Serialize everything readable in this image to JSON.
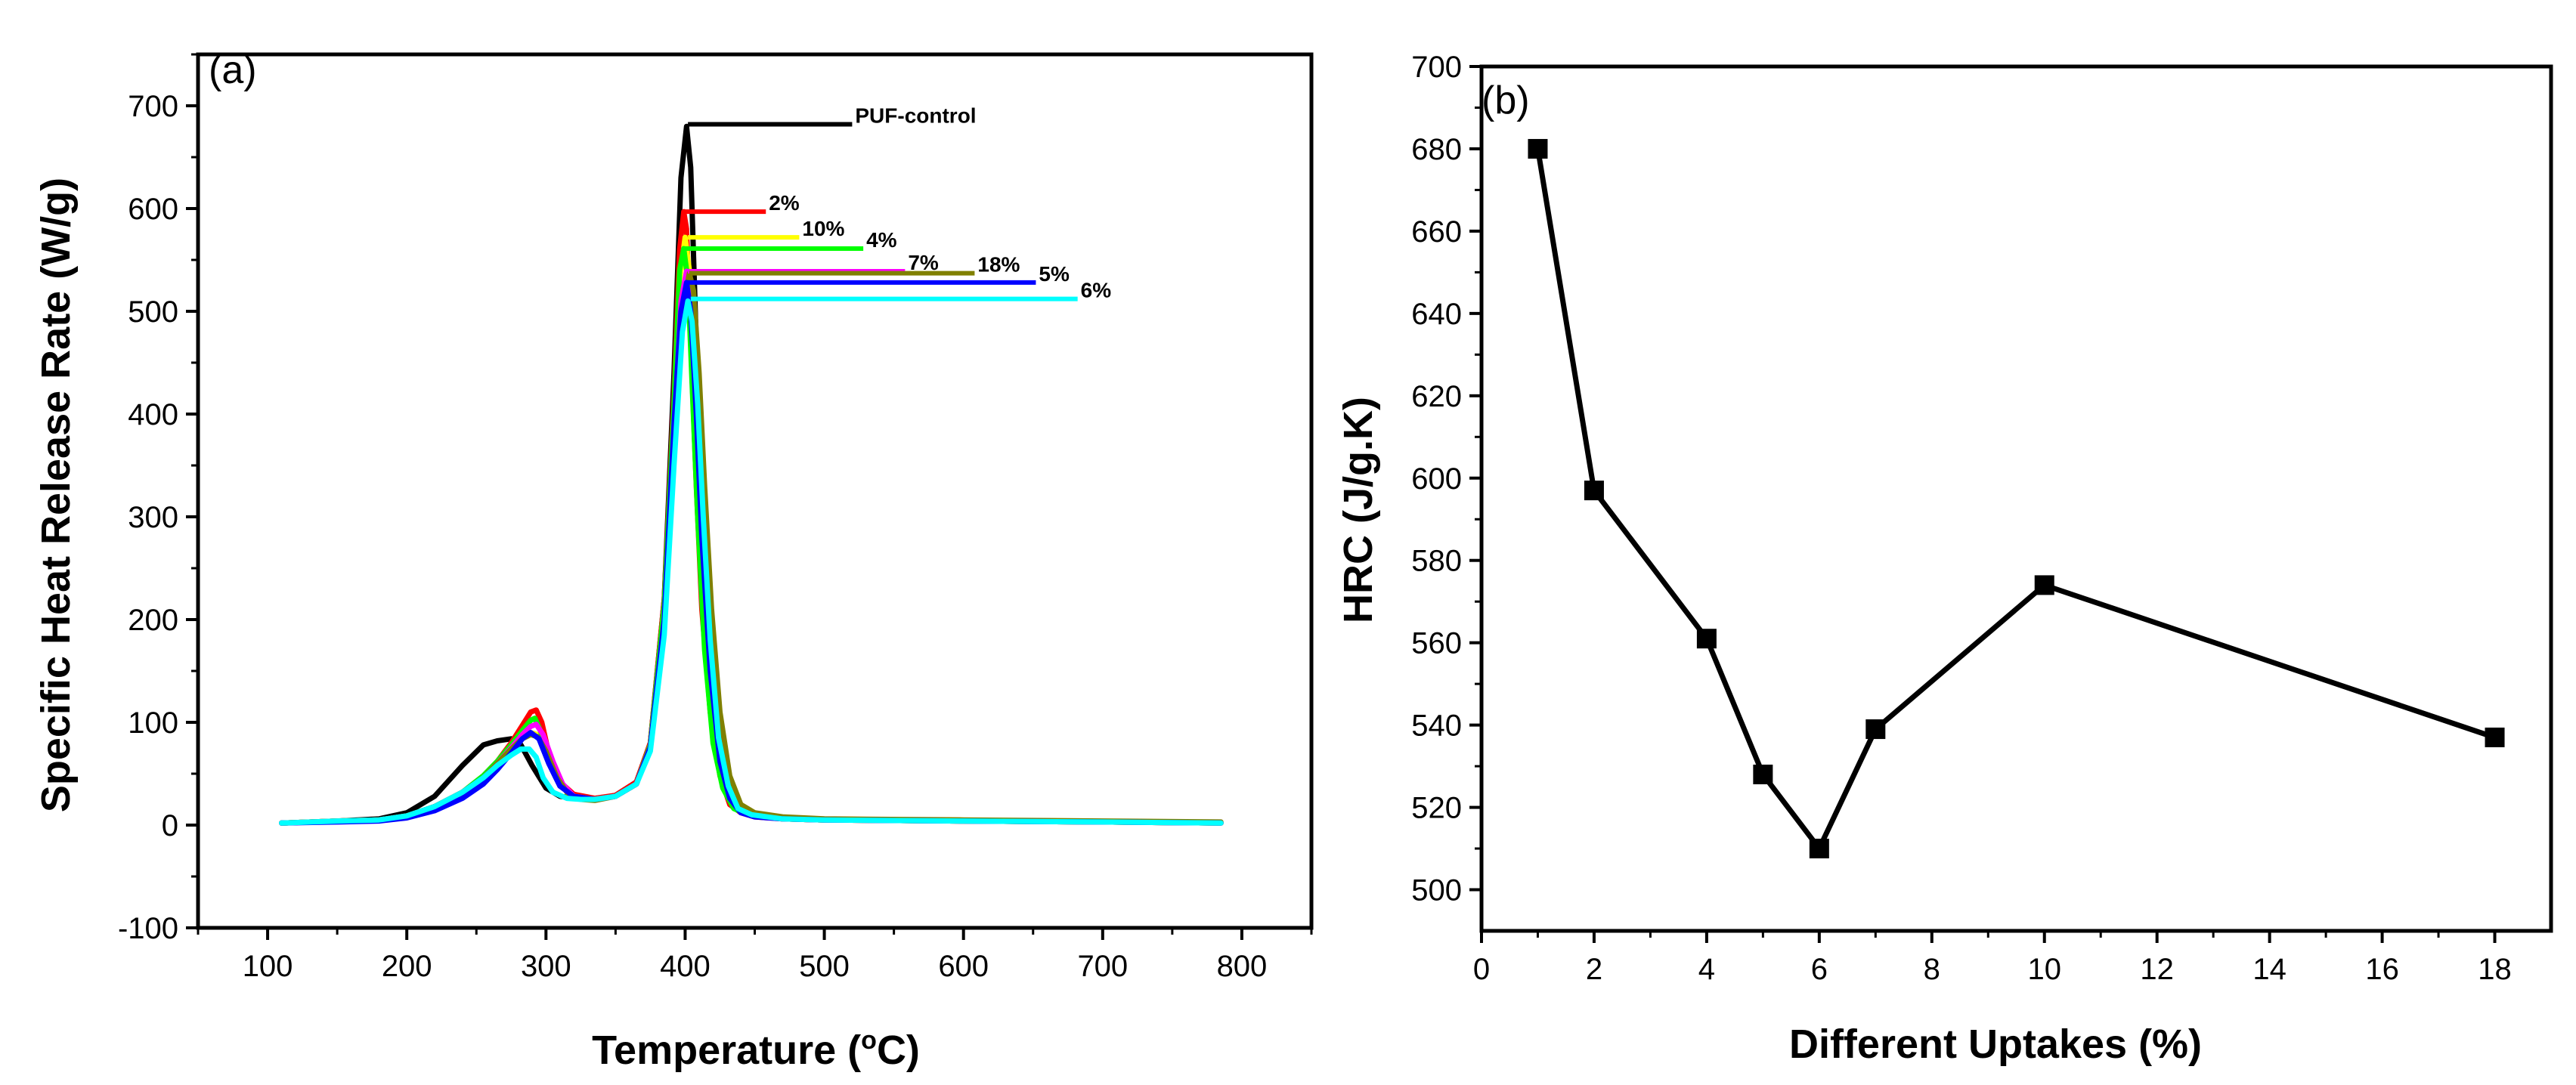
{
  "chart_data": [
    {
      "type": "line",
      "panel": "(a)",
      "xlabel": "Temperature (oC)",
      "xlabel_main": "Temperature (",
      "xlabel_sup": "o",
      "xlabel_end": "C)",
      "ylabel": "Specific Heat Release Rate (W/g)",
      "xlim": [
        50,
        850
      ],
      "ylim": [
        -100,
        750
      ],
      "xticks": [
        100,
        200,
        300,
        400,
        500,
        600,
        700,
        800
      ],
      "yticks": [
        -100,
        0,
        100,
        200,
        300,
        400,
        500,
        600,
        700
      ],
      "grid": false,
      "series": [
        {
          "name": "PUF-control",
          "color": "#000000",
          "x": [
            110,
            150,
            180,
            200,
            220,
            240,
            255,
            265,
            275,
            282,
            290,
            300,
            310,
            320,
            335,
            350,
            365,
            375,
            385,
            392,
            397,
            401,
            404,
            408,
            412,
            418,
            425,
            432,
            440,
            450,
            470,
            500,
            600,
            700,
            785
          ],
          "y": [
            2,
            4,
            6,
            12,
            28,
            58,
            78,
            82,
            84,
            78,
            58,
            36,
            28,
            26,
            25,
            29,
            42,
            80,
            220,
            440,
            630,
            680,
            640,
            470,
            300,
            160,
            70,
            30,
            14,
            9,
            6,
            5,
            4,
            3,
            2
          ],
          "label_anchor": [
            402,
            682
          ],
          "label_end": [
            520,
            682
          ]
        },
        {
          "name": "2%",
          "color": "#ff0000",
          "x": [
            110,
            150,
            180,
            200,
            220,
            240,
            255,
            265,
            275,
            283,
            289,
            293,
            297,
            302,
            310,
            320,
            335,
            350,
            365,
            375,
            385,
            392,
            396,
            399,
            401,
            404,
            408,
            412,
            418,
            425,
            432,
            440,
            450,
            470,
            500,
            600,
            700,
            785
          ],
          "y": [
            2,
            4,
            5,
            9,
            18,
            32,
            48,
            62,
            80,
            97,
            110,
            112,
            100,
            70,
            42,
            30,
            26,
            29,
            42,
            80,
            220,
            420,
            560,
            597,
            580,
            470,
            330,
            210,
            110,
            48,
            20,
            12,
            8,
            6,
            5,
            4,
            3,
            2
          ],
          "label_anchor": [
            399,
            597
          ],
          "label_end": [
            458,
            597
          ]
        },
        {
          "name": "10%",
          "color": "#ffff00",
          "x": [
            110,
            150,
            180,
            200,
            220,
            240,
            255,
            265,
            275,
            283,
            289,
            294,
            300,
            310,
            320,
            335,
            350,
            365,
            375,
            385,
            392,
            396,
            400,
            403,
            407,
            411,
            416,
            423,
            430,
            438,
            448,
            470,
            500,
            600,
            700,
            785
          ],
          "y": [
            2,
            4,
            5,
            9,
            18,
            32,
            46,
            58,
            72,
            84,
            90,
            88,
            70,
            40,
            28,
            25,
            28,
            40,
            78,
            210,
            400,
            530,
            572,
            540,
            440,
            320,
            190,
            90,
            40,
            18,
            10,
            6,
            5,
            4,
            3,
            2
          ],
          "label_anchor": [
            402,
            572
          ],
          "label_end": [
            482,
            572
          ]
        },
        {
          "name": "4%",
          "color": "#00ff00",
          "x": [
            110,
            150,
            180,
            200,
            220,
            240,
            255,
            265,
            275,
            283,
            289,
            292,
            296,
            302,
            310,
            320,
            335,
            350,
            365,
            375,
            385,
            392,
            396,
            399,
            402,
            405,
            409,
            414,
            420,
            427,
            435,
            445,
            470,
            500,
            600,
            700,
            785
          ],
          "y": [
            2,
            4,
            5,
            9,
            18,
            32,
            48,
            62,
            78,
            92,
            102,
            104,
            92,
            65,
            40,
            28,
            25,
            28,
            40,
            78,
            215,
            410,
            540,
            561,
            530,
            430,
            300,
            170,
            80,
            36,
            16,
            10,
            6,
            5,
            4,
            3,
            2
          ],
          "label_anchor": [
            400,
            561
          ],
          "label_end": [
            528,
            561
          ]
        },
        {
          "name": "7%",
          "color": "#ff00ff",
          "x": [
            110,
            150,
            180,
            200,
            220,
            240,
            255,
            265,
            275,
            283,
            289,
            293,
            298,
            305,
            312,
            320,
            335,
            350,
            365,
            375,
            385,
            392,
            397,
            401,
            404,
            408,
            412,
            417,
            423,
            430,
            438,
            448,
            470,
            500,
            600,
            700,
            785
          ],
          "y": [
            2,
            4,
            5,
            9,
            18,
            32,
            46,
            60,
            75,
            88,
            96,
            98,
            88,
            62,
            40,
            28,
            25,
            28,
            40,
            76,
            200,
            380,
            510,
            539,
            520,
            430,
            320,
            200,
            100,
            44,
            18,
            10,
            6,
            5,
            4,
            3,
            2
          ],
          "label_anchor": [
            402,
            539
          ],
          "label_end": [
            558,
            539
          ]
        },
        {
          "name": "18%",
          "color": "#808000",
          "x": [
            110,
            150,
            180,
            200,
            220,
            240,
            255,
            265,
            275,
            283,
            289,
            294,
            300,
            308,
            316,
            325,
            335,
            350,
            365,
            375,
            385,
            392,
            398,
            403,
            406,
            410,
            414,
            419,
            425,
            432,
            440,
            450,
            470,
            500,
            600,
            700,
            785
          ],
          "y": [
            2,
            4,
            5,
            9,
            18,
            32,
            46,
            60,
            74,
            84,
            88,
            86,
            72,
            46,
            30,
            25,
            24,
            28,
            40,
            74,
            190,
            360,
            500,
            537,
            520,
            440,
            330,
            210,
            110,
            48,
            20,
            12,
            8,
            6,
            5,
            4,
            3
          ],
          "label_anchor": [
            403,
            537
          ],
          "label_end": [
            608,
            537
          ]
        },
        {
          "name": "5%",
          "color": "#0000ff",
          "x": [
            110,
            150,
            180,
            200,
            220,
            240,
            255,
            265,
            275,
            283,
            289,
            295,
            302,
            310,
            320,
            335,
            350,
            365,
            375,
            385,
            392,
            397,
            401,
            404,
            408,
            412,
            418,
            425,
            432,
            440,
            450,
            470,
            500,
            600,
            700,
            785
          ],
          "y": [
            2,
            3,
            4,
            7,
            14,
            26,
            40,
            54,
            70,
            84,
            90,
            84,
            60,
            38,
            28,
            25,
            28,
            40,
            76,
            200,
            390,
            500,
            528,
            500,
            400,
            280,
            150,
            62,
            26,
            12,
            8,
            6,
            5,
            4,
            3,
            2
          ],
          "label_anchor": [
            400,
            528
          ],
          "label_end": [
            652,
            528
          ]
        },
        {
          "name": "6%",
          "color": "#00ffff",
          "x": [
            110,
            150,
            180,
            200,
            220,
            240,
            255,
            265,
            275,
            282,
            288,
            293,
            298,
            305,
            315,
            325,
            335,
            350,
            365,
            375,
            385,
            392,
            398,
            402,
            405,
            409,
            413,
            418,
            424,
            431,
            438,
            448,
            470,
            500,
            600,
            700,
            785
          ],
          "y": [
            2,
            4,
            5,
            9,
            18,
            32,
            46,
            58,
            68,
            74,
            74,
            66,
            46,
            32,
            26,
            25,
            25,
            28,
            40,
            72,
            185,
            350,
            480,
            510,
            490,
            410,
            300,
            180,
            85,
            38,
            16,
            10,
            6,
            5,
            4,
            3,
            2
          ],
          "label_anchor": [
            404,
            512
          ],
          "label_end": [
            682,
            512
          ]
        }
      ]
    },
    {
      "type": "scatter",
      "panel": "(b)",
      "connect_points": true,
      "xlabel": "Different Uptakes (%)",
      "ylabel": "HRC (J/g.K)",
      "xlim": [
        0,
        19
      ],
      "ylim": [
        490,
        700
      ],
      "xticks": [
        0,
        2,
        4,
        6,
        8,
        10,
        12,
        14,
        16,
        18
      ],
      "yticks": [
        500,
        520,
        540,
        560,
        580,
        600,
        620,
        640,
        660,
        680,
        700
      ],
      "grid": false,
      "series": [
        {
          "name": "HRC",
          "color": "#000000",
          "marker": "square",
          "x": [
            1,
            2,
            4,
            5,
            6,
            7,
            10,
            18
          ],
          "y": [
            680,
            597,
            561,
            528,
            510,
            539,
            574,
            537
          ]
        }
      ]
    }
  ]
}
